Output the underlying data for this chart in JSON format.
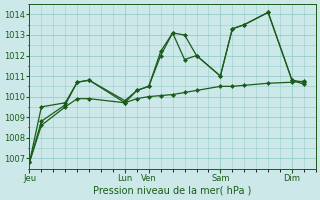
{
  "xlabel": "Pression niveau de la mer( hPa )",
  "background_color": "#cce8e8",
  "grid_color": "#99cccc",
  "line_color": "#1a5c1a",
  "ylim": [
    1006.5,
    1014.5
  ],
  "yticks": [
    1007,
    1008,
    1009,
    1010,
    1011,
    1012,
    1013,
    1014
  ],
  "day_labels": [
    "Jeu",
    "Lun",
    "Ven",
    "Sam",
    "Dim"
  ],
  "day_positions": [
    0.0,
    8.0,
    10.0,
    16.0,
    22.0
  ],
  "xlim": [
    0,
    24
  ],
  "line1_x": [
    0,
    1,
    3,
    4,
    5,
    8,
    9,
    10,
    11,
    12,
    13,
    14,
    16,
    17,
    18,
    20,
    22,
    23
  ],
  "line1_y": [
    1006.8,
    1008.8,
    1009.6,
    1010.7,
    1010.8,
    1009.7,
    1010.3,
    1010.5,
    1012.2,
    1013.1,
    1013.0,
    1012.0,
    1011.0,
    1013.3,
    1013.5,
    1014.1,
    1010.8,
    1010.7
  ],
  "line2_x": [
    0,
    1,
    3,
    4,
    5,
    8,
    9,
    10,
    11,
    12,
    13,
    14,
    16,
    17,
    18,
    20,
    22,
    23
  ],
  "line2_y": [
    1006.8,
    1009.5,
    1009.7,
    1010.7,
    1010.8,
    1009.8,
    1010.3,
    1010.5,
    1012.0,
    1013.1,
    1011.8,
    1012.0,
    1011.0,
    1013.3,
    1013.5,
    1014.1,
    1010.8,
    1010.6
  ],
  "line3_x": [
    0,
    1,
    3,
    4,
    5,
    8,
    9,
    10,
    11,
    12,
    13,
    14,
    16,
    17,
    18,
    20,
    22,
    23
  ],
  "line3_y": [
    1006.8,
    1008.6,
    1009.5,
    1009.9,
    1009.9,
    1009.7,
    1009.9,
    1010.0,
    1010.05,
    1010.1,
    1010.2,
    1010.3,
    1010.5,
    1010.5,
    1010.55,
    1010.65,
    1010.7,
    1010.75
  ],
  "xlabel_fontsize": 7,
  "tick_labelsize": 6
}
